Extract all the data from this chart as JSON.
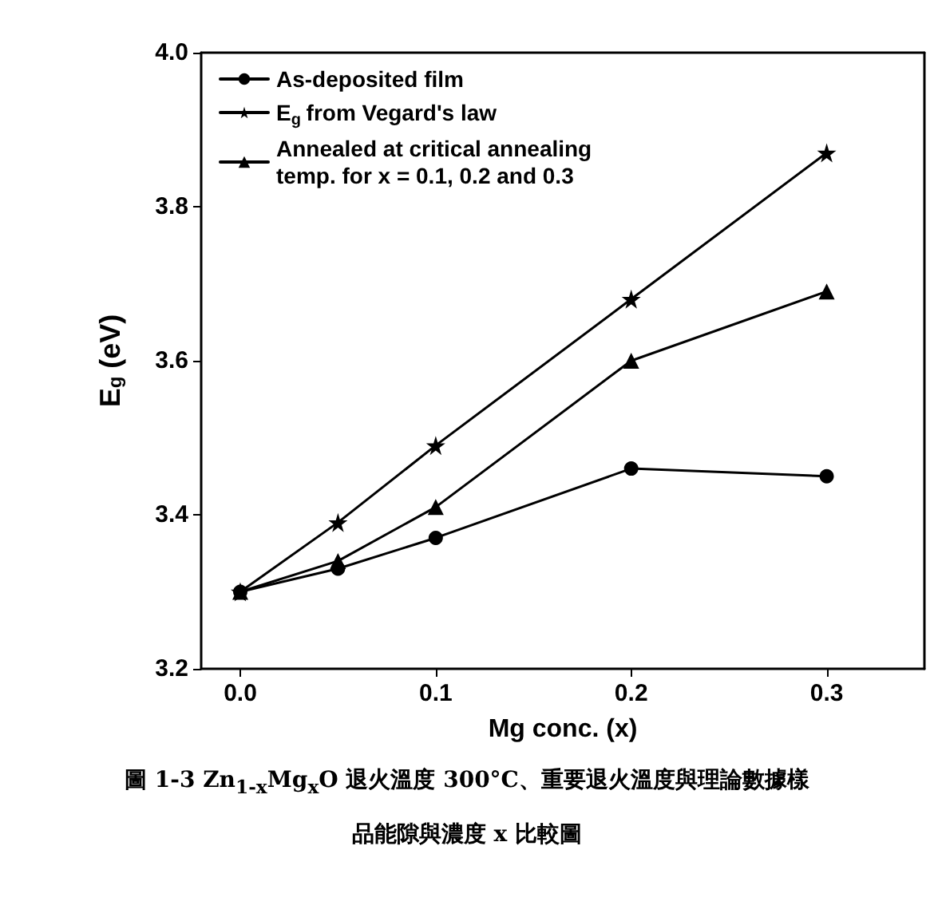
{
  "chart_data": {
    "type": "line",
    "xlabel": "Mg conc. (x)",
    "ylabel": "E$_{g}$ (eV)",
    "x": [
      0,
      0.05,
      0.1,
      0.2,
      0.3
    ],
    "series": [
      {
        "name": "As-deposited film",
        "color": "#000000",
        "marker": "circle",
        "values": [
          3.3,
          3.33,
          3.37,
          3.46,
          3.45
        ]
      },
      {
        "name": "E$_{g}$ from Vegard's law",
        "color": "#000000",
        "marker": "star",
        "values": [
          3.3,
          3.39,
          3.49,
          3.68,
          3.87
        ]
      },
      {
        "name": "Annealed at critical annealing temp. for x = 0.1, 0.2 and 0.3",
        "color": "#000000",
        "marker": "triangle",
        "values": [
          3.3,
          3.34,
          3.41,
          3.6,
          3.69
        ]
      }
    ],
    "xlim": [
      -0.02,
      0.35
    ],
    "xticks": [
      {
        "value": 0,
        "label": "0.0"
      },
      0.1,
      0.2,
      0.3
    ],
    "ylim": [
      3.2,
      4.0
    ],
    "yticks": [
      3.2,
      3.4,
      3.6,
      3.8,
      {
        "value": 4.0,
        "label": "4.0"
      }
    ],
    "grid": false,
    "legend": "top left",
    "line_style": "solid",
    "annotations": [
      "圖 1-3 Zn$_{1-x}$Mg$_{x}$O 退火溫度 300°C、重要退火溫度與理論數據樣品能隙與濃度 x 比較圖"
    ]
  }
}
